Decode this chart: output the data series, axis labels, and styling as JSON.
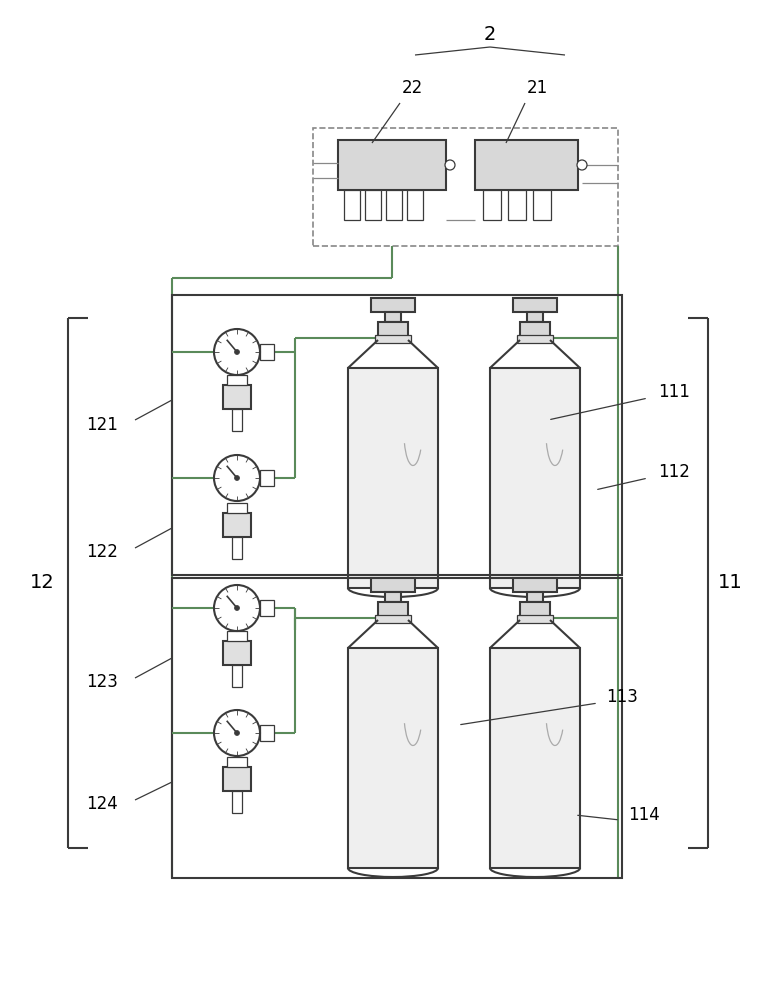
{
  "bg_color": "#ffffff",
  "line_color": "#3a3a3a",
  "pipe_color": "#5a8a5a",
  "dash_color": "#888888",
  "fill_light": "#efefef",
  "fill_mid": "#d8d8d8",
  "fill_dark": "#e0e0e0",
  "fig_width": 7.76,
  "fig_height": 10.0,
  "dpi": 100
}
